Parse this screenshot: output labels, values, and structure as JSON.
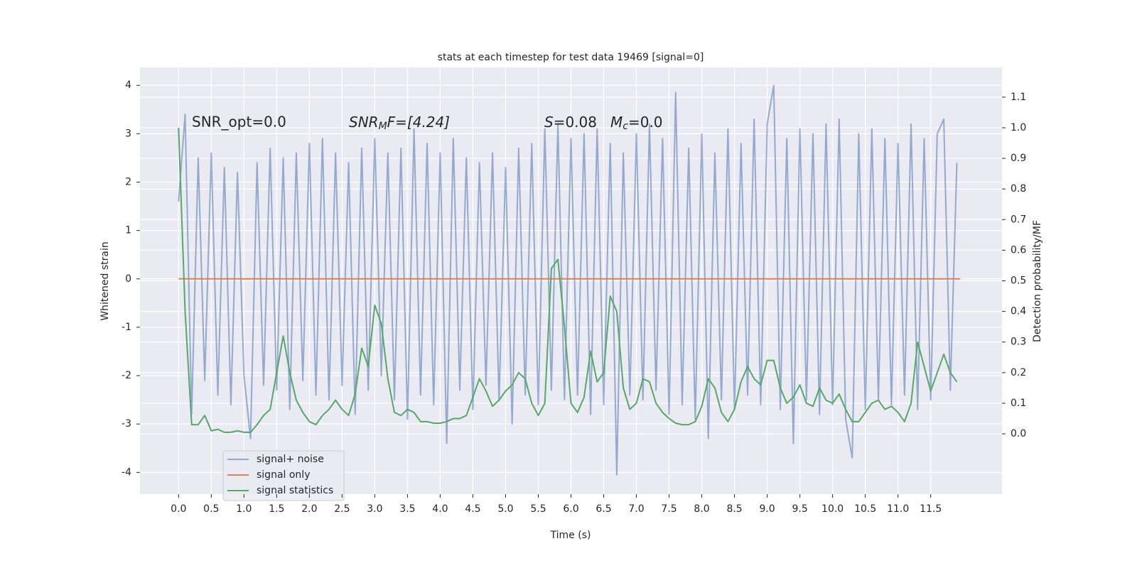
{
  "chart_data": {
    "type": "line",
    "title": "stats at each timestep for test data 19469 [signal=0]",
    "xlabel": "Time (s)",
    "ylabel": "Whitened strain",
    "y2label": "Detection probability/MF",
    "annotations": [
      {
        "text": "SNR_opt=0.0"
      },
      {
        "main": "SNR",
        "sub": "M",
        "rest": "F=[4.24]"
      },
      {
        "main": "S",
        "rest": "=0.08"
      },
      {
        "main": "M",
        "sub": "c",
        "rest": "=0.0"
      }
    ],
    "xlim": [
      -0.59,
      12.59
    ],
    "xticks": [
      {
        "value": 0,
        "label": "0.0"
      },
      0.5,
      {
        "value": 1,
        "label": "1.0"
      },
      1.5,
      {
        "value": 2,
        "label": "2.0"
      },
      2.5,
      {
        "value": 3,
        "label": "3.0"
      },
      3.5,
      {
        "value": 4,
        "label": "4.0"
      },
      4.5,
      {
        "value": 5,
        "label": "5.0"
      },
      5.5,
      {
        "value": 6,
        "label": "6.0"
      },
      6.5,
      {
        "value": 7,
        "label": "7.0"
      },
      7.5,
      {
        "value": 8,
        "label": "8.0"
      },
      8.5,
      {
        "value": 9,
        "label": "9.0"
      },
      9.5,
      {
        "value": 10,
        "label": "10.0"
      },
      10.5,
      {
        "value": 11,
        "label": "11.0"
      },
      11.5
    ],
    "ylim": [
      -4.45,
      4.37
    ],
    "yticks": [
      -4,
      -3,
      -2,
      -1,
      0,
      1,
      2,
      3,
      4
    ],
    "y2lim": [
      -0.197,
      1.197
    ],
    "y2ticks": [
      {
        "value": 0,
        "label": "0.0"
      },
      0.1,
      0.2,
      0.3,
      0.4,
      0.5,
      0.6,
      0.7,
      0.8,
      0.9,
      {
        "value": 1,
        "label": "1.0"
      },
      1.1
    ],
    "grid": true,
    "legend": "lower left",
    "series": [
      {
        "name": "signal+ noise",
        "color": "#4c72b0",
        "axis": "y",
        "x": [
          0,
          0.1,
          0.2,
          0.3,
          0.4,
          0.5,
          0.6,
          0.7,
          0.8,
          0.9,
          1,
          1.1,
          1.2,
          1.3,
          1.4,
          1.5,
          1.6,
          1.7,
          1.8,
          1.9,
          2,
          2.1,
          2.2,
          2.3,
          2.4,
          2.5,
          2.6,
          2.7,
          2.8,
          2.9,
          3,
          3.1,
          3.2,
          3.3,
          3.4,
          3.5,
          3.6,
          3.7,
          3.8,
          3.9,
          4,
          4.1,
          4.2,
          4.3,
          4.4,
          4.5,
          4.6,
          4.7,
          4.8,
          4.9,
          5,
          5.1,
          5.2,
          5.3,
          5.4,
          5.5,
          5.6,
          5.7,
          5.8,
          5.9,
          6,
          6.1,
          6.2,
          6.3,
          6.4,
          6.5,
          6.6,
          6.7,
          6.8,
          6.9,
          7,
          7.1,
          7.2,
          7.3,
          7.4,
          7.5,
          7.6,
          7.7,
          7.8,
          7.9,
          8,
          8.1,
          8.2,
          8.3,
          8.4,
          8.5,
          8.6,
          8.7,
          8.8,
          8.9,
          9,
          9.1,
          9.2,
          9.3,
          9.4,
          9.5,
          9.6,
          9.7,
          9.8,
          9.9,
          10,
          10.1,
          10.2,
          10.3,
          10.4,
          10.5,
          10.6,
          10.7,
          10.8,
          10.9,
          11,
          11.1,
          11.2,
          11.3,
          11.4,
          11.5,
          11.6,
          11.7,
          11.8,
          11.9
        ],
        "values": [
          1.6,
          3.4,
          -2.8,
          2.5,
          -2.1,
          2.6,
          -2.4,
          2.3,
          -2.6,
          2.2,
          -2.0,
          -3.3,
          2.4,
          -2.2,
          2.7,
          -2.3,
          2.5,
          -2.7,
          2.6,
          -2.1,
          2.8,
          -2.4,
          2.9,
          -2.5,
          2.6,
          -2.2,
          2.4,
          -2.8,
          2.7,
          -2.3,
          2.9,
          -2.0,
          2.6,
          -2.5,
          2.7,
          -2.9,
          3.1,
          -2.4,
          2.8,
          -2.6,
          2.6,
          -3.4,
          2.9,
          -2.3,
          2.5,
          -2.7,
          2.4,
          -2.2,
          2.6,
          -2.5,
          2.3,
          -3.0,
          2.7,
          -2.4,
          2.8,
          -2.6,
          3.1,
          -2.3,
          3.2,
          -2.5,
          2.9,
          -2.4,
          3.0,
          -2.8,
          3.1,
          -2.6,
          2.8,
          -4.05,
          2.6,
          -2.4,
          3.0,
          -2.5,
          3.2,
          -2.3,
          2.9,
          -2.8,
          3.85,
          -2.6,
          2.7,
          -2.9,
          3.0,
          -3.3,
          2.6,
          -2.5,
          3.1,
          -2.7,
          2.8,
          -2.4,
          3.3,
          -2.6,
          3.2,
          4.0,
          -2.7,
          2.9,
          -3.4,
          3.1,
          -2.5,
          3.0,
          -2.8,
          3.2,
          -2.6,
          3.3,
          -2.9,
          -3.7,
          3.0,
          -2.7,
          3.1,
          -2.5,
          2.9,
          -2.6,
          2.8,
          -2.4,
          3.2,
          -2.7,
          2.9,
          -2.5,
          3.0,
          3.3,
          -2.3,
          2.4
        ]
      },
      {
        "name": "signal only",
        "color": "#dd8452",
        "axis": "y",
        "x": [
          0,
          11.95
        ],
        "values": [
          0,
          0
        ]
      },
      {
        "name": "signal statistics",
        "color": "#55a868",
        "axis": "y2",
        "x": [
          0,
          0.1,
          0.2,
          0.3,
          0.4,
          0.5,
          0.6,
          0.7,
          0.8,
          0.9,
          1,
          1.1,
          1.2,
          1.3,
          1.4,
          1.5,
          1.6,
          1.7,
          1.8,
          1.9,
          2,
          2.1,
          2.2,
          2.3,
          2.4,
          2.5,
          2.6,
          2.7,
          2.8,
          2.9,
          3,
          3.1,
          3.2,
          3.3,
          3.4,
          3.5,
          3.6,
          3.7,
          3.8,
          3.9,
          4,
          4.1,
          4.2,
          4.3,
          4.4,
          4.5,
          4.6,
          4.7,
          4.8,
          4.9,
          5,
          5.1,
          5.2,
          5.3,
          5.4,
          5.5,
          5.6,
          5.7,
          5.8,
          5.9,
          6,
          6.1,
          6.2,
          6.3,
          6.4,
          6.5,
          6.6,
          6.7,
          6.8,
          6.9,
          7,
          7.1,
          7.2,
          7.3,
          7.4,
          7.5,
          7.6,
          7.7,
          7.8,
          7.9,
          8,
          8.1,
          8.2,
          8.3,
          8.4,
          8.5,
          8.6,
          8.7,
          8.8,
          8.9,
          9,
          9.1,
          9.2,
          9.3,
          9.4,
          9.5,
          9.6,
          9.7,
          9.8,
          9.9,
          10,
          10.1,
          10.2,
          10.3,
          10.4,
          10.5,
          10.6,
          10.7,
          10.8,
          10.9,
          11,
          11.1,
          11.2,
          11.3,
          11.4,
          11.5,
          11.6,
          11.7,
          11.8,
          11.9
        ],
        "values": [
          1.0,
          0.4,
          0.03,
          0.03,
          0.06,
          0.01,
          0.015,
          0.005,
          0.005,
          0.01,
          0.005,
          0.005,
          0.03,
          0.06,
          0.08,
          0.2,
          0.32,
          0.2,
          0.11,
          0.07,
          0.04,
          0.03,
          0.06,
          0.08,
          0.11,
          0.08,
          0.06,
          0.13,
          0.28,
          0.22,
          0.42,
          0.36,
          0.18,
          0.07,
          0.06,
          0.08,
          0.07,
          0.04,
          0.04,
          0.035,
          0.035,
          0.04,
          0.05,
          0.05,
          0.06,
          0.12,
          0.18,
          0.14,
          0.09,
          0.11,
          0.14,
          0.16,
          0.2,
          0.18,
          0.1,
          0.06,
          0.1,
          0.54,
          0.57,
          0.35,
          0.1,
          0.07,
          0.12,
          0.27,
          0.17,
          0.2,
          0.45,
          0.4,
          0.15,
          0.08,
          0.1,
          0.18,
          0.17,
          0.1,
          0.07,
          0.05,
          0.035,
          0.03,
          0.03,
          0.04,
          0.09,
          0.18,
          0.15,
          0.07,
          0.04,
          0.08,
          0.17,
          0.22,
          0.18,
          0.16,
          0.24,
          0.24,
          0.15,
          0.1,
          0.12,
          0.16,
          0.1,
          0.09,
          0.15,
          0.11,
          0.1,
          0.13,
          0.08,
          0.04,
          0.04,
          0.07,
          0.1,
          0.11,
          0.08,
          0.09,
          0.07,
          0.04,
          0.1,
          0.3,
          0.22,
          0.14,
          0.2,
          0.26,
          0.2,
          0.17
        ]
      }
    ]
  }
}
